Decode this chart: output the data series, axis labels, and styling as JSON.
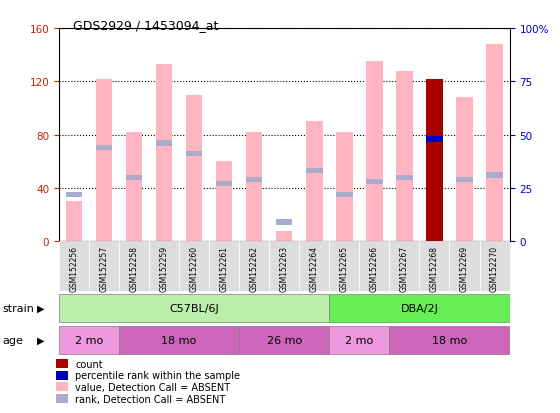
{
  "title": "GDS2929 / 1453094_at",
  "samples": [
    "GSM152256",
    "GSM152257",
    "GSM152258",
    "GSM152259",
    "GSM152260",
    "GSM152261",
    "GSM152262",
    "GSM152263",
    "GSM152264",
    "GSM152265",
    "GSM152266",
    "GSM152267",
    "GSM152268",
    "GSM152269",
    "GSM152270"
  ],
  "values_absent": [
    30,
    122,
    82,
    133,
    110,
    60,
    82,
    8,
    90,
    82,
    135,
    128,
    0,
    108,
    148
  ],
  "ranks_absent_pct": [
    22,
    44,
    30,
    46,
    41,
    27,
    29,
    9,
    33,
    22,
    28,
    30,
    0,
    29,
    31
  ],
  "count_values": [
    0,
    0,
    0,
    0,
    0,
    0,
    0,
    0,
    0,
    0,
    0,
    0,
    122,
    0,
    0
  ],
  "percentile_values_pct": [
    0,
    0,
    0,
    0,
    0,
    0,
    0,
    0,
    0,
    0,
    0,
    0,
    48,
    0,
    0
  ],
  "ylim_left": [
    0,
    160
  ],
  "ylim_right": [
    0,
    100
  ],
  "yticks_left": [
    0,
    40,
    80,
    120,
    160
  ],
  "yticks_right": [
    0,
    25,
    50,
    75,
    100
  ],
  "ytick_labels_right": [
    "0",
    "25",
    "50",
    "75",
    "100%"
  ],
  "absent_value_color": "#FFB6C1",
  "absent_rank_color": "#AAAACC",
  "count_color": "#AA0000",
  "percentile_color": "#0000BB",
  "bg_color": "#FFFFFF",
  "left_tick_color": "#CC2200",
  "right_tick_color": "#0000CC",
  "bar_width": 0.55,
  "c57_color": "#BBEEAA",
  "dba_color": "#66EE55",
  "age_light_color": "#EE99DD",
  "age_dark_color": "#CC66BB",
  "label_bg_color": "#DDDDDD"
}
